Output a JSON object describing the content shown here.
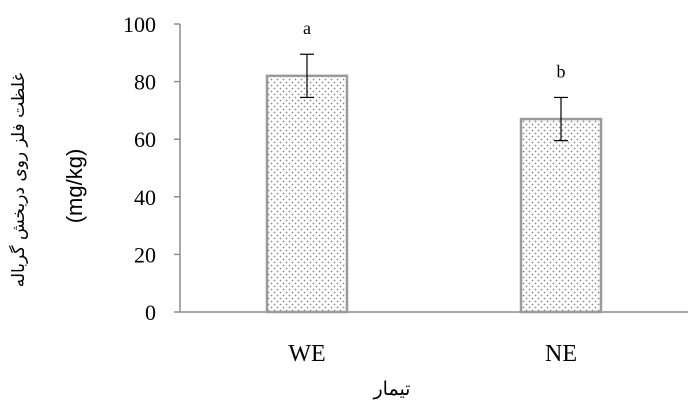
{
  "chart_data": {
    "type": "bar",
    "categories": [
      "WE",
      "NE"
    ],
    "values": [
      82,
      67
    ],
    "error": [
      7.5,
      7.5
    ],
    "letters": [
      "a",
      "b"
    ],
    "ylim": [
      0,
      100
    ],
    "yticks": [
      0,
      20,
      40,
      60,
      80,
      100
    ],
    "ylabel": "غلظت فلز روی دربخش گرباله",
    "ylabel_unit": "(mg/kg)",
    "xlabel": "تیمار",
    "bar_fill": "#ffffff",
    "bar_stroke": "#9a9a9a",
    "dot_color": "#8a8a8a",
    "axis_color": "#8c8c8c",
    "grid": false
  }
}
